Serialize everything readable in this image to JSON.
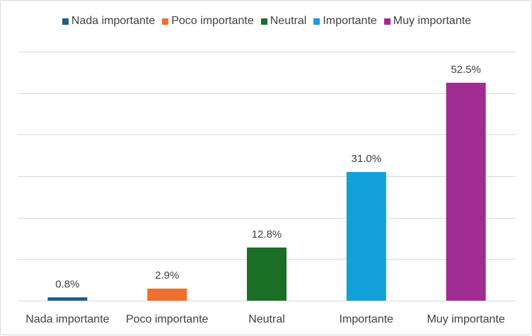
{
  "chart_data": {
    "type": "bar",
    "categories": [
      "Nada importante",
      "Poco importante",
      "Neutral",
      "Importante",
      "Muy importante"
    ],
    "values": [
      0.8,
      2.9,
      12.8,
      31.0,
      52.5
    ],
    "data_labels": [
      "0.8%",
      "2.9%",
      "12.8%",
      "31.0%",
      "52.5%"
    ],
    "colors": [
      "#1f5c86",
      "#ed7031",
      "#1b6e25",
      "#12a0d8",
      "#a02b93"
    ],
    "legend": {
      "position": "top",
      "entries": [
        "Nada importante",
        "Poco importante",
        "Neutral",
        "Importante",
        "Muy importante"
      ]
    },
    "title": "",
    "xlabel": "",
    "ylabel": "",
    "ylim": [
      0,
      60
    ],
    "grid": true,
    "y_axis_labels_visible": false
  }
}
